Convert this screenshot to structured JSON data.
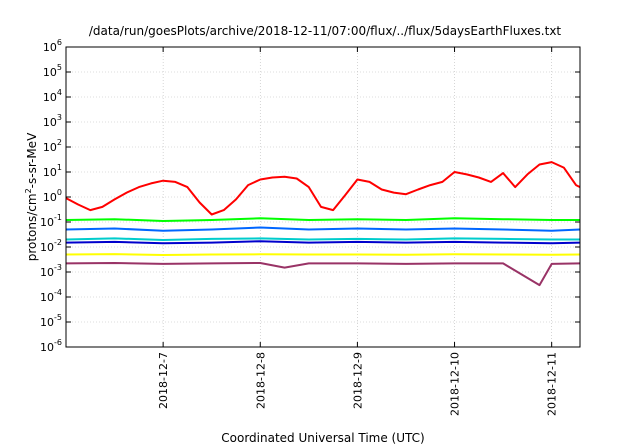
{
  "chart_data": {
    "type": "line",
    "title": "/data/run/goesPlots/archive/2018-12-11/07:00/flux/../flux/5daysEarthFluxes.txt",
    "xlabel": "Coordinated Universal Time (UTC)",
    "ylabel": "protons/cm²-s-sr-MeV",
    "ylabel_parts": {
      "pre": "protons/cm",
      "sup": "2",
      "post": "-s-sr-MeV"
    },
    "y_scale": "log",
    "ylim": [
      1e-06,
      1000000.0
    ],
    "y_ticks": [
      {
        "value": 1e-06,
        "base": "10",
        "exp": "-6"
      },
      {
        "value": 1e-05,
        "base": "10",
        "exp": "-5"
      },
      {
        "value": 0.0001,
        "base": "10",
        "exp": "-4"
      },
      {
        "value": 0.001,
        "base": "10",
        "exp": "-3"
      },
      {
        "value": 0.01,
        "base": "10",
        "exp": "-2"
      },
      {
        "value": 0.1,
        "base": "10",
        "exp": "-1"
      },
      {
        "value": 1.0,
        "base": "10",
        "exp": "0"
      },
      {
        "value": 10.0,
        "base": "10",
        "exp": "1"
      },
      {
        "value": 100.0,
        "base": "10",
        "exp": "2"
      },
      {
        "value": 1000.0,
        "base": "10",
        "exp": "3"
      },
      {
        "value": 10000.0,
        "base": "10",
        "exp": "4"
      },
      {
        "value": 100000.0,
        "base": "10",
        "exp": "5"
      },
      {
        "value": 1000000.0,
        "base": "10",
        "exp": "6"
      }
    ],
    "xlim": [
      "2018-12-06T00:00",
      "2018-12-11T07:00"
    ],
    "x_ticks": [
      {
        "value": "2018-12-07T00:00",
        "label": "2018-12-7"
      },
      {
        "value": "2018-12-08T00:00",
        "label": "2018-12-8"
      },
      {
        "value": "2018-12-09T00:00",
        "label": "2018-12-9"
      },
      {
        "value": "2018-12-10T00:00",
        "label": "2018-12-10"
      },
      {
        "value": "2018-12-11T00:00",
        "label": "2018-12-11"
      }
    ],
    "grid": true,
    "series": [
      {
        "color": "#ff0000",
        "x": [
          "2018-12-06T00:00",
          "2018-12-06T03:00",
          "2018-12-06T06:00",
          "2018-12-06T09:00",
          "2018-12-06T12:00",
          "2018-12-06T15:00",
          "2018-12-06T18:00",
          "2018-12-06T21:00",
          "2018-12-07T00:00",
          "2018-12-07T03:00",
          "2018-12-07T06:00",
          "2018-12-07T09:00",
          "2018-12-07T12:00",
          "2018-12-07T15:00",
          "2018-12-07T18:00",
          "2018-12-07T21:00",
          "2018-12-08T00:00",
          "2018-12-08T03:00",
          "2018-12-08T06:00",
          "2018-12-08T09:00",
          "2018-12-08T12:00",
          "2018-12-08T15:00",
          "2018-12-08T18:00",
          "2018-12-08T21:00",
          "2018-12-09T00:00",
          "2018-12-09T03:00",
          "2018-12-09T06:00",
          "2018-12-09T09:00",
          "2018-12-09T12:00",
          "2018-12-09T15:00",
          "2018-12-09T18:00",
          "2018-12-09T21:00",
          "2018-12-10T00:00",
          "2018-12-10T03:00",
          "2018-12-10T06:00",
          "2018-12-10T09:00",
          "2018-12-10T12:00",
          "2018-12-10T15:00",
          "2018-12-10T18:00",
          "2018-12-10T21:00",
          "2018-12-11T00:00",
          "2018-12-11T03:00",
          "2018-12-11T06:00",
          "2018-12-11T07:00"
        ],
        "values": [
          0.9,
          0.5,
          0.3,
          0.4,
          0.8,
          1.5,
          2.5,
          3.5,
          4.5,
          4,
          2.5,
          0.6,
          0.2,
          0.3,
          0.8,
          3,
          5,
          6,
          6.5,
          5.5,
          2.5,
          0.4,
          0.3,
          1.2,
          5,
          4,
          2,
          1.5,
          1.3,
          2,
          3,
          4,
          10,
          8,
          6,
          4,
          9,
          2.5,
          8,
          20,
          25,
          15,
          3,
          2.5
        ]
      },
      {
        "color": "#00ff00",
        "x": [
          "2018-12-06T00:00",
          "2018-12-06T12:00",
          "2018-12-07T00:00",
          "2018-12-07T12:00",
          "2018-12-08T00:00",
          "2018-12-08T12:00",
          "2018-12-09T00:00",
          "2018-12-09T12:00",
          "2018-12-10T00:00",
          "2018-12-10T12:00",
          "2018-12-11T00:00",
          "2018-12-11T07:00"
        ],
        "values": [
          0.12,
          0.13,
          0.11,
          0.12,
          0.14,
          0.12,
          0.13,
          0.12,
          0.14,
          0.13,
          0.12,
          0.12
        ]
      },
      {
        "color": "#0066ff",
        "x": [
          "2018-12-06T00:00",
          "2018-12-06T12:00",
          "2018-12-07T00:00",
          "2018-12-07T12:00",
          "2018-12-08T00:00",
          "2018-12-08T12:00",
          "2018-12-09T00:00",
          "2018-12-09T12:00",
          "2018-12-10T00:00",
          "2018-12-10T12:00",
          "2018-12-11T00:00",
          "2018-12-11T07:00"
        ],
        "values": [
          0.05,
          0.055,
          0.045,
          0.05,
          0.06,
          0.05,
          0.055,
          0.05,
          0.055,
          0.05,
          0.045,
          0.05
        ]
      },
      {
        "color": "#00cccc",
        "x": [
          "2018-12-06T00:00",
          "2018-12-06T12:00",
          "2018-12-07T00:00",
          "2018-12-07T12:00",
          "2018-12-08T00:00",
          "2018-12-08T12:00",
          "2018-12-09T00:00",
          "2018-12-09T12:00",
          "2018-12-10T00:00",
          "2018-12-10T12:00",
          "2018-12-11T00:00",
          "2018-12-11T07:00"
        ],
        "values": [
          0.02,
          0.022,
          0.019,
          0.021,
          0.022,
          0.02,
          0.021,
          0.02,
          0.022,
          0.021,
          0.02,
          0.02
        ]
      },
      {
        "color": "#0000cc",
        "x": [
          "2018-12-06T00:00",
          "2018-12-06T12:00",
          "2018-12-07T00:00",
          "2018-12-07T12:00",
          "2018-12-08T00:00",
          "2018-12-08T12:00",
          "2018-12-09T00:00",
          "2018-12-09T12:00",
          "2018-12-10T00:00",
          "2018-12-10T12:00",
          "2018-12-11T00:00",
          "2018-12-11T07:00"
        ],
        "values": [
          0.015,
          0.016,
          0.014,
          0.015,
          0.017,
          0.015,
          0.016,
          0.015,
          0.016,
          0.015,
          0.014,
          0.015
        ]
      },
      {
        "color": "#ffff00",
        "x": [
          "2018-12-06T00:00",
          "2018-12-06T12:00",
          "2018-12-07T00:00",
          "2018-12-07T12:00",
          "2018-12-08T00:00",
          "2018-12-08T12:00",
          "2018-12-09T00:00",
          "2018-12-09T12:00",
          "2018-12-10T00:00",
          "2018-12-10T12:00",
          "2018-12-11T00:00",
          "2018-12-11T07:00"
        ],
        "values": [
          0.005,
          0.0052,
          0.0048,
          0.005,
          0.0051,
          0.005,
          0.005,
          0.0049,
          0.0051,
          0.005,
          0.0049,
          0.005
        ]
      },
      {
        "color": "#993366",
        "x": [
          "2018-12-06T00:00",
          "2018-12-06T12:00",
          "2018-12-07T00:00",
          "2018-12-07T12:00",
          "2018-12-08T00:00",
          "2018-12-08T06:00",
          "2018-12-08T12:00",
          "2018-12-09T00:00",
          "2018-12-09T12:00",
          "2018-12-10T00:00",
          "2018-12-10T12:00",
          "2018-12-10T21:00",
          "2018-12-11T00:00",
          "2018-12-11T07:00"
        ],
        "values": [
          0.0022,
          0.0023,
          0.0021,
          0.0022,
          0.0023,
          0.0015,
          0.0022,
          0.0022,
          0.0021,
          0.0022,
          0.0022,
          0.0003,
          0.0021,
          0.0022
        ]
      }
    ]
  }
}
